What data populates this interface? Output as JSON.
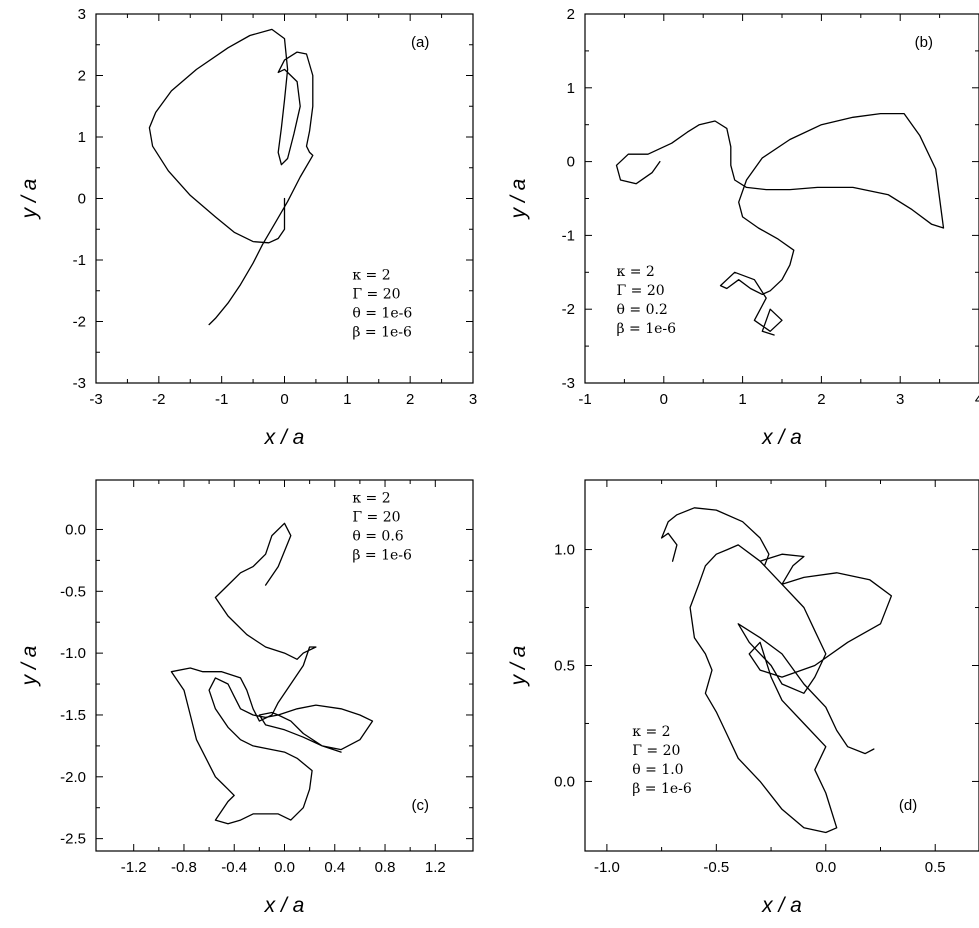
{
  "chart_data": [
    {
      "id": "a",
      "type": "line",
      "panel_label": "(a)",
      "xlabel": "x / a",
      "ylabel": "y / a",
      "xlim": [
        -3,
        3
      ],
      "ylim": [
        -3,
        3
      ],
      "xticks": [
        -3,
        -2,
        -1,
        0,
        1,
        2,
        3
      ],
      "xtick_labels": [
        "-3",
        "-2",
        "-1",
        "0",
        "1",
        "2",
        "3"
      ],
      "yticks": [
        -3,
        -2,
        -1,
        0,
        1,
        2,
        3
      ],
      "ytick_labels": [
        "-3",
        "-2",
        "-1",
        "0",
        "1",
        "2",
        "3"
      ],
      "params": [
        "κ = 2",
        "Γ = 20",
        "θ = 1e-6",
        "β = 1e-6"
      ],
      "series": [
        {
          "x": [
            0.0,
            0.0,
            -0.1,
            -0.25,
            -0.5,
            -0.8,
            -1.1,
            -1.5,
            -1.85,
            -2.1,
            -2.15,
            -2.05,
            -1.8,
            -1.4,
            -0.9,
            -0.55,
            -0.2,
            0.0,
            0.05,
            0.0,
            -0.05,
            -0.1,
            -0.05,
            0.05,
            0.15,
            0.25,
            0.2,
            0.0,
            -0.1,
            0.0,
            0.2,
            0.35,
            0.45,
            0.45,
            0.4,
            0.35,
            0.4,
            0.45,
            0.25,
            0.05,
            -0.15,
            -0.35,
            -0.5,
            -0.7,
            -0.9,
            -1.1,
            -1.2
          ],
          "y": [
            0.0,
            -0.5,
            -0.65,
            -0.72,
            -0.7,
            -0.55,
            -0.3,
            0.05,
            0.45,
            0.85,
            1.15,
            1.4,
            1.75,
            2.1,
            2.45,
            2.65,
            2.75,
            2.6,
            2.1,
            1.6,
            1.15,
            0.75,
            0.55,
            0.65,
            1.05,
            1.5,
            1.9,
            2.1,
            2.05,
            2.25,
            2.38,
            2.35,
            2.0,
            1.5,
            1.1,
            0.85,
            0.75,
            0.7,
            0.35,
            -0.05,
            -0.4,
            -0.75,
            -1.05,
            -1.4,
            -1.7,
            -1.95,
            -2.05
          ]
        }
      ]
    },
    {
      "id": "b",
      "type": "line",
      "panel_label": "(b)",
      "xlabel": "x / a",
      "ylabel": "y / a",
      "xlim": [
        -1,
        4
      ],
      "ylim": [
        -3,
        2
      ],
      "xticks": [
        -1,
        0,
        1,
        2,
        3,
        4
      ],
      "xtick_labels": [
        "-1",
        "0",
        "1",
        "2",
        "3",
        "4"
      ],
      "yticks": [
        -3,
        -2,
        -1,
        0,
        1,
        2
      ],
      "ytick_labels": [
        "-3",
        "-2",
        "-1",
        "0",
        "1",
        "2"
      ],
      "params": [
        "κ = 2",
        "Γ = 20",
        "θ = 0.2",
        "β = 1e-6"
      ],
      "series": [
        {
          "x": [
            -0.05,
            -0.15,
            -0.35,
            -0.55,
            -0.6,
            -0.45,
            -0.2,
            0.1,
            0.3,
            0.45,
            0.65,
            0.8,
            0.85,
            0.85,
            0.9,
            1.05,
            1.3,
            1.6,
            1.95,
            2.4,
            2.85,
            3.15,
            3.4,
            3.55,
            3.45,
            3.25,
            3.05,
            2.75,
            2.4,
            2.0,
            1.6,
            1.25,
            1.05,
            0.95,
            1.0,
            1.2,
            1.45,
            1.65,
            1.6,
            1.5,
            1.35,
            1.25,
            1.1,
            0.95,
            0.8,
            0.72,
            0.9,
            1.15,
            1.3,
            1.15,
            1.35,
            1.5,
            1.35,
            1.25,
            1.4
          ],
          "y": [
            0.0,
            -0.15,
            -0.3,
            -0.25,
            -0.05,
            0.1,
            0.1,
            0.25,
            0.4,
            0.5,
            0.55,
            0.45,
            0.2,
            -0.05,
            -0.25,
            -0.35,
            -0.38,
            -0.38,
            -0.35,
            -0.35,
            -0.45,
            -0.65,
            -0.85,
            -0.9,
            -0.1,
            0.35,
            0.65,
            0.65,
            0.6,
            0.5,
            0.3,
            0.05,
            -0.25,
            -0.55,
            -0.75,
            -0.9,
            -1.05,
            -1.2,
            -1.4,
            -1.6,
            -1.75,
            -1.8,
            -1.72,
            -1.6,
            -1.72,
            -1.68,
            -1.5,
            -1.6,
            -1.85,
            -2.15,
            -2.3,
            -2.15,
            -2.0,
            -2.3,
            -2.35
          ]
        }
      ]
    },
    {
      "id": "c",
      "type": "line",
      "panel_label": "(c)",
      "xlabel": "x / a",
      "ylabel": "y / a",
      "xlim": [
        -1.5,
        1.5
      ],
      "ylim": [
        -2.6,
        0.4
      ],
      "xticks": [
        -1.2,
        -0.8,
        -0.4,
        0.0,
        0.4,
        0.8,
        1.2
      ],
      "xtick_labels": [
        "-1.2",
        "-0.8",
        "-0.4",
        "0.0",
        "0.4",
        "0.8",
        "1.2"
      ],
      "yticks": [
        -2.5,
        -2.0,
        -1.5,
        -1.0,
        -0.5,
        0.0
      ],
      "ytick_labels": [
        "-2.5",
        "-2.0",
        "-1.5",
        "-1.0",
        "-0.5",
        "0.0"
      ],
      "params": [
        "κ = 2",
        "Γ = 20",
        "θ = 0.6",
        "β = 1e-6"
      ],
      "series": [
        {
          "x": [
            -0.15,
            -0.05,
            0.05,
            0.0,
            -0.1,
            -0.15,
            -0.25,
            -0.35,
            -0.45,
            -0.55,
            -0.45,
            -0.3,
            -0.15,
            0.0,
            0.1,
            0.15,
            0.25,
            0.2,
            0.15,
            0.05,
            -0.05,
            -0.1,
            -0.2,
            -0.25,
            -0.3,
            -0.35,
            -0.5,
            -0.65,
            -0.75,
            -0.9,
            -0.8,
            -0.75,
            -0.7,
            -0.6,
            -0.55,
            -0.5,
            -0.45,
            -0.4,
            -0.45,
            -0.55,
            -0.45,
            -0.35,
            -0.25,
            -0.15,
            -0.05,
            0.05,
            0.15,
            0.2,
            0.22,
            0.1,
            0.0,
            -0.1,
            -0.25,
            -0.35,
            -0.45,
            -0.55,
            -0.6,
            -0.55,
            -0.45,
            -0.4,
            -0.35,
            -0.25,
            -0.15,
            -0.05,
            0.1,
            0.25,
            0.45,
            0.6,
            0.7,
            0.6,
            0.45,
            0.3,
            0.15,
            0.05,
            -0.05,
            -0.1,
            -0.2,
            -0.15,
            0.0,
            0.15,
            0.3,
            0.45
          ],
          "y": [
            -0.45,
            -0.3,
            -0.05,
            0.05,
            -0.05,
            -0.2,
            -0.3,
            -0.35,
            -0.45,
            -0.55,
            -0.7,
            -0.85,
            -0.95,
            -1.0,
            -1.05,
            -1.0,
            -0.95,
            -0.95,
            -1.1,
            -1.25,
            -1.4,
            -1.5,
            -1.55,
            -1.45,
            -1.3,
            -1.2,
            -1.15,
            -1.15,
            -1.12,
            -1.15,
            -1.3,
            -1.5,
            -1.7,
            -1.9,
            -2.0,
            -2.05,
            -2.1,
            -2.15,
            -2.2,
            -2.35,
            -2.38,
            -2.35,
            -2.3,
            -2.3,
            -2.3,
            -2.35,
            -2.25,
            -2.1,
            -1.95,
            -1.85,
            -1.8,
            -1.78,
            -1.75,
            -1.7,
            -1.6,
            -1.45,
            -1.3,
            -1.2,
            -1.25,
            -1.35,
            -1.45,
            -1.5,
            -1.52,
            -1.5,
            -1.45,
            -1.42,
            -1.45,
            -1.5,
            -1.55,
            -1.7,
            -1.78,
            -1.75,
            -1.65,
            -1.55,
            -1.5,
            -1.48,
            -1.5,
            -1.58,
            -1.62,
            -1.68,
            -1.75,
            -1.8
          ]
        }
      ]
    },
    {
      "id": "d",
      "type": "line",
      "panel_label": "(d)",
      "xlabel": "x / a",
      "ylabel": "y / a",
      "xlim": [
        -1.1,
        0.7
      ],
      "ylim": [
        -0.3,
        1.3
      ],
      "xticks": [
        -1.0,
        -0.5,
        0.0,
        0.5
      ],
      "xtick_labels": [
        "-1.0",
        "-0.5",
        "0.0",
        "0.5"
      ],
      "yticks": [
        0.0,
        0.5,
        1.0
      ],
      "ytick_labels": [
        "0.0",
        "0.5",
        "1.0"
      ],
      "params": [
        "κ = 2",
        "Γ = 20",
        "θ = 1.0",
        "β = 1e-6"
      ],
      "series": [
        {
          "x": [
            -0.7,
            -0.68,
            -0.72,
            -0.75,
            -0.72,
            -0.68,
            -0.6,
            -0.5,
            -0.38,
            -0.3,
            -0.26,
            -0.28,
            -0.3,
            -0.2,
            -0.1,
            -0.15,
            -0.2,
            -0.1,
            0.05,
            0.2,
            0.3,
            0.25,
            0.1,
            -0.05,
            -0.2,
            -0.3,
            -0.35,
            -0.3,
            -0.25,
            -0.2,
            -0.1,
            0.0,
            -0.05,
            0.0,
            0.05,
            0.0,
            -0.1,
            -0.2,
            -0.3,
            -0.4,
            -0.45,
            -0.5,
            -0.55,
            -0.52,
            -0.55,
            -0.6,
            -0.62,
            -0.58,
            -0.55,
            -0.5,
            -0.45,
            -0.4,
            -0.3,
            -0.2,
            -0.1,
            -0.05,
            0.0,
            -0.05,
            -0.1,
            -0.2,
            -0.25,
            -0.35,
            -0.4,
            -0.3,
            -0.2,
            -0.1,
            0.0,
            0.05,
            0.1,
            0.18,
            0.22
          ],
          "y": [
            0.95,
            1.02,
            1.07,
            1.05,
            1.12,
            1.15,
            1.18,
            1.17,
            1.12,
            1.05,
            0.98,
            0.93,
            0.95,
            0.98,
            0.97,
            0.93,
            0.85,
            0.88,
            0.9,
            0.87,
            0.8,
            0.68,
            0.6,
            0.5,
            0.45,
            0.48,
            0.55,
            0.6,
            0.45,
            0.35,
            0.25,
            0.15,
            0.05,
            -0.05,
            -0.2,
            -0.22,
            -0.2,
            -0.12,
            0.0,
            0.1,
            0.2,
            0.3,
            0.38,
            0.48,
            0.55,
            0.62,
            0.75,
            0.85,
            0.93,
            0.98,
            1.0,
            1.02,
            0.95,
            0.85,
            0.75,
            0.65,
            0.55,
            0.45,
            0.38,
            0.42,
            0.5,
            0.6,
            0.68,
            0.62,
            0.55,
            0.42,
            0.32,
            0.22,
            0.15,
            0.12,
            0.14
          ]
        }
      ]
    }
  ]
}
